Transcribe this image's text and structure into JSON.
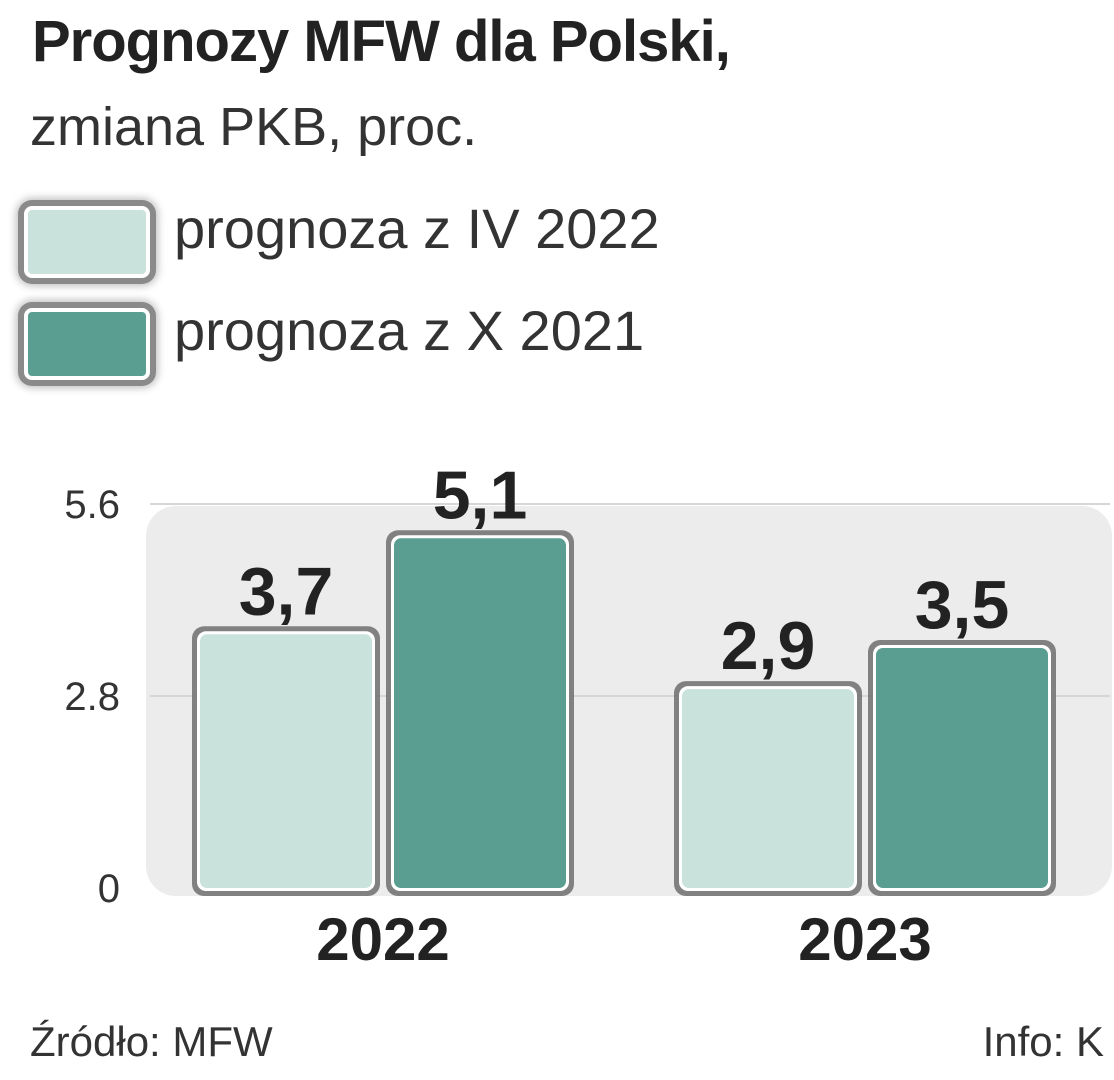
{
  "header": {
    "title": "Prognozy MFW dla Polski,",
    "subtitle": "zmiana PKB, proc."
  },
  "legend": [
    {
      "label": "prognoza z IV 2022",
      "color": "#c9e2dc"
    },
    {
      "label": "prognoza z X 2021",
      "color": "#5a9e92"
    }
  ],
  "footer": {
    "source": "Źródło: MFW",
    "credit": "Info: K"
  },
  "chart_data": {
    "type": "bar",
    "categories": [
      "2022",
      "2023"
    ],
    "series": [
      {
        "name": "prognoza z IV 2022",
        "values": [
          3.7,
          2.9
        ],
        "labels": [
          "3,7",
          "2,9"
        ],
        "color": "#c9e2dc"
      },
      {
        "name": "prognoza z X 2021",
        "values": [
          5.1,
          3.5
        ],
        "labels": [
          "5,1",
          "3,5"
        ],
        "color": "#5a9e92"
      }
    ],
    "yticks": [
      0,
      2.8,
      5.6
    ],
    "ytick_labels": [
      "0",
      "2.8",
      "5.6"
    ],
    "ylim": [
      0,
      5.6
    ],
    "grid": true,
    "legend_position": "top-left"
  }
}
